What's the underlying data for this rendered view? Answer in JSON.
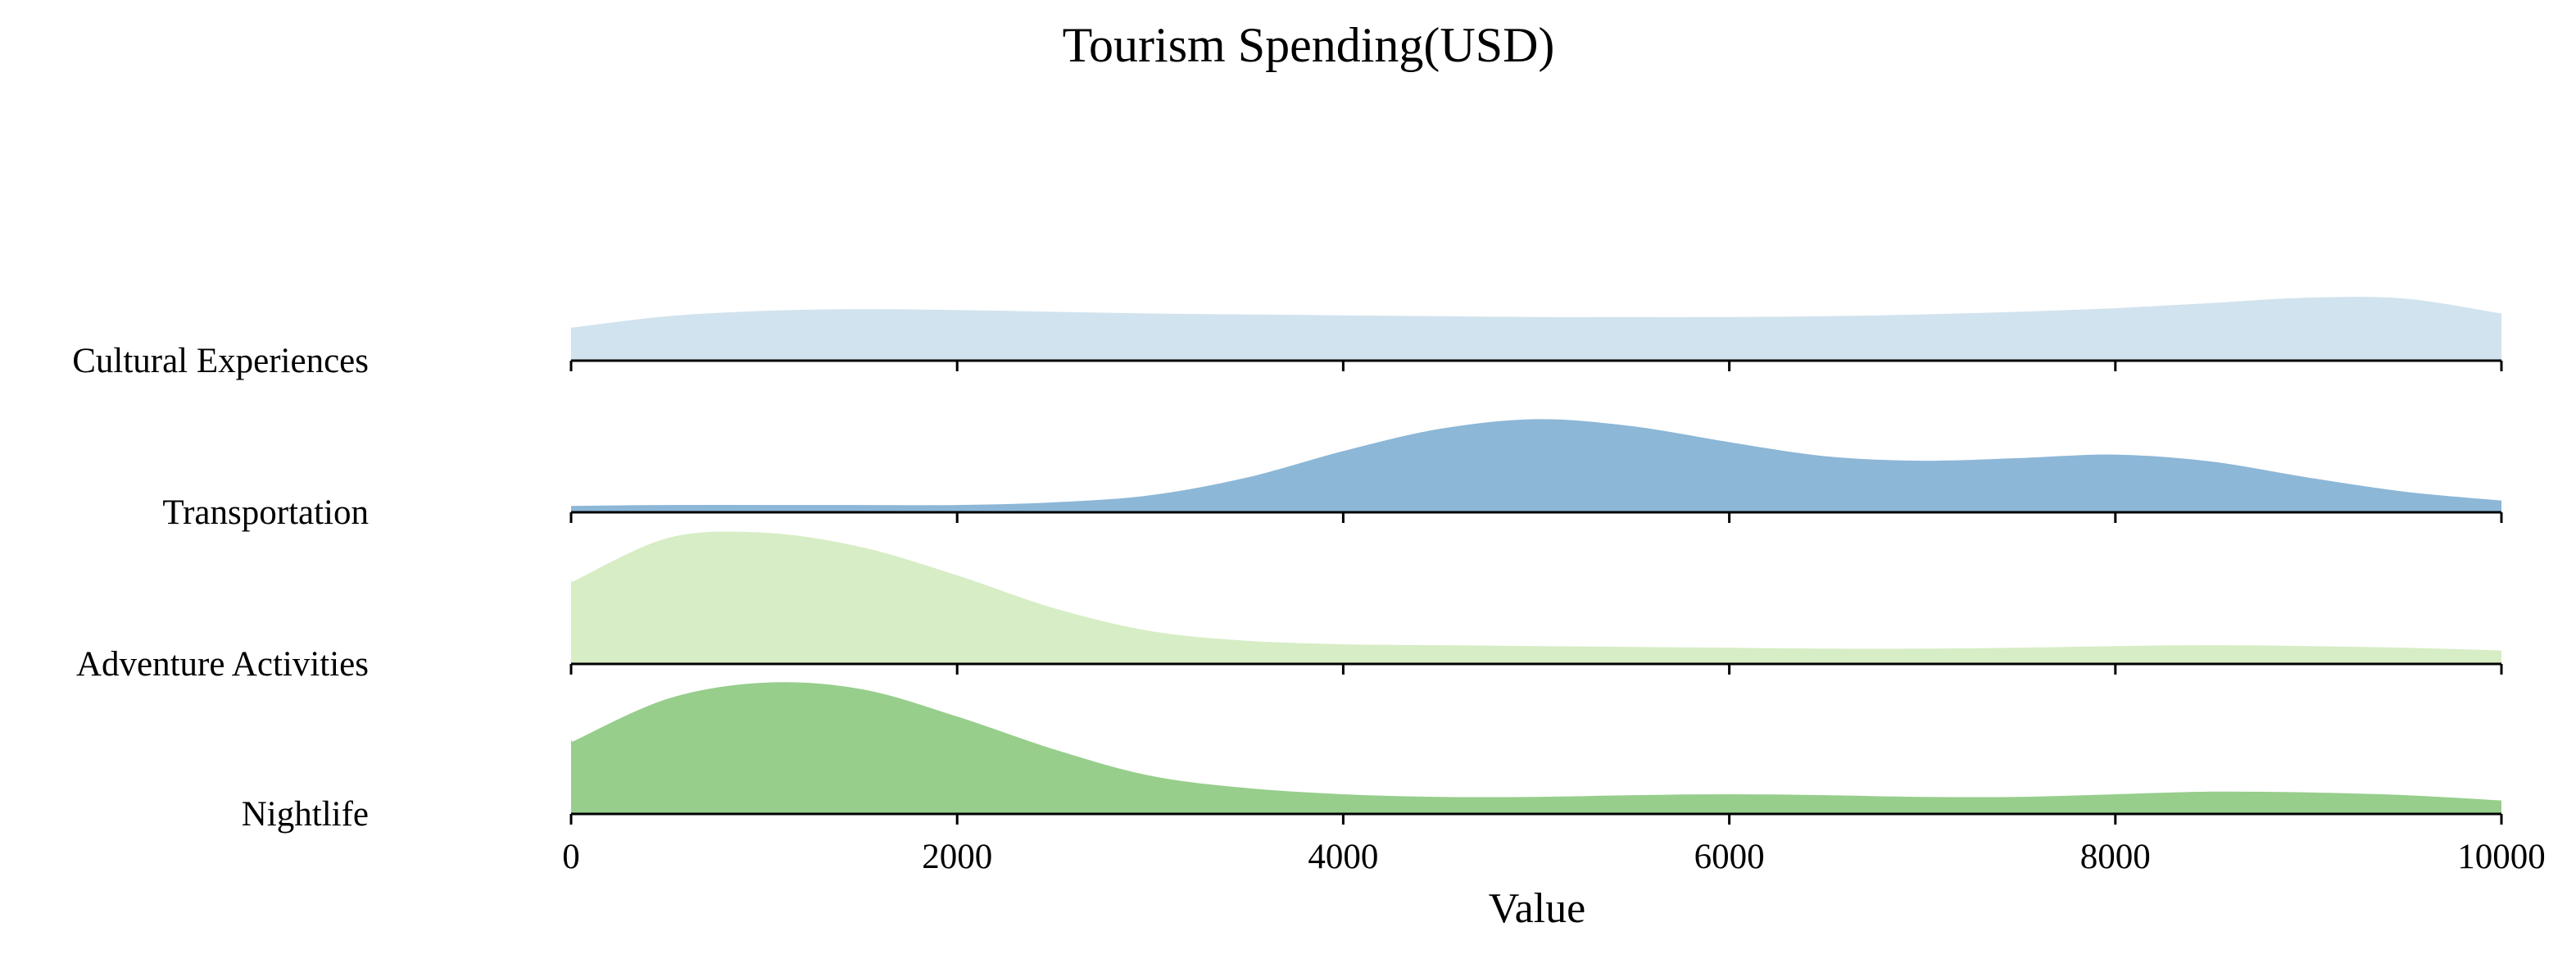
{
  "chart_data": {
    "type": "ridgeline",
    "title": "Tourism Spending(USD)",
    "xlabel": "Value",
    "ylabel": "",
    "xlim": [
      0,
      10000
    ],
    "xticks": [
      0,
      2000,
      4000,
      6000,
      8000,
      10000
    ],
    "grid": false,
    "legend": "none",
    "series": [
      {
        "name": "Cultural Experiences",
        "color": "#c6dcea",
        "density": [
          [
            0,
            0.4
          ],
          [
            500,
            0.53
          ],
          [
            1000,
            0.59
          ],
          [
            1500,
            0.61
          ],
          [
            2000,
            0.6
          ],
          [
            2500,
            0.58
          ],
          [
            3000,
            0.56
          ],
          [
            3500,
            0.55
          ],
          [
            4000,
            0.54
          ],
          [
            4500,
            0.53
          ],
          [
            5000,
            0.52
          ],
          [
            5500,
            0.52
          ],
          [
            6000,
            0.52
          ],
          [
            6500,
            0.53
          ],
          [
            7000,
            0.55
          ],
          [
            7500,
            0.58
          ],
          [
            8000,
            0.62
          ],
          [
            8500,
            0.68
          ],
          [
            9000,
            0.74
          ],
          [
            9500,
            0.73
          ],
          [
            10000,
            0.56
          ]
        ]
      },
      {
        "name": "Transportation",
        "color": "#6fa5cd",
        "density": [
          [
            0,
            0.1
          ],
          [
            500,
            0.11
          ],
          [
            1000,
            0.11
          ],
          [
            1500,
            0.11
          ],
          [
            2000,
            0.11
          ],
          [
            2500,
            0.14
          ],
          [
            3000,
            0.22
          ],
          [
            3500,
            0.42
          ],
          [
            4000,
            0.72
          ],
          [
            4500,
            0.97
          ],
          [
            5000,
            1.08
          ],
          [
            5500,
            1.0
          ],
          [
            6000,
            0.82
          ],
          [
            6500,
            0.66
          ],
          [
            7000,
            0.61
          ],
          [
            7500,
            0.64
          ],
          [
            8000,
            0.68
          ],
          [
            8500,
            0.6
          ],
          [
            9000,
            0.42
          ],
          [
            9500,
            0.26
          ],
          [
            10000,
            0.16
          ]
        ]
      },
      {
        "name": "Adventure Activities",
        "color": "#cde9b7",
        "density": [
          [
            0,
            0.95
          ],
          [
            500,
            1.45
          ],
          [
            1000,
            1.51
          ],
          [
            1500,
            1.35
          ],
          [
            2000,
            1.03
          ],
          [
            2500,
            0.66
          ],
          [
            3000,
            0.4
          ],
          [
            3500,
            0.29
          ],
          [
            4000,
            0.25
          ],
          [
            4500,
            0.24
          ],
          [
            5000,
            0.23
          ],
          [
            5500,
            0.22
          ],
          [
            6000,
            0.21
          ],
          [
            6500,
            0.2
          ],
          [
            7000,
            0.2
          ],
          [
            7500,
            0.21
          ],
          [
            8000,
            0.23
          ],
          [
            8500,
            0.24
          ],
          [
            9000,
            0.23
          ],
          [
            9500,
            0.21
          ],
          [
            10000,
            0.18
          ]
        ]
      },
      {
        "name": "Nightlife",
        "color": "#7dc26f",
        "density": [
          [
            0,
            0.84
          ],
          [
            500,
            1.33
          ],
          [
            1000,
            1.51
          ],
          [
            1500,
            1.44
          ],
          [
            2000,
            1.13
          ],
          [
            2500,
            0.76
          ],
          [
            3000,
            0.46
          ],
          [
            3500,
            0.32
          ],
          [
            4000,
            0.25
          ],
          [
            4500,
            0.22
          ],
          [
            5000,
            0.22
          ],
          [
            5500,
            0.24
          ],
          [
            6000,
            0.25
          ],
          [
            6500,
            0.24
          ],
          [
            7000,
            0.22
          ],
          [
            7500,
            0.22
          ],
          [
            8000,
            0.25
          ],
          [
            8500,
            0.28
          ],
          [
            9000,
            0.27
          ],
          [
            9500,
            0.24
          ],
          [
            10000,
            0.18
          ]
        ]
      }
    ]
  }
}
